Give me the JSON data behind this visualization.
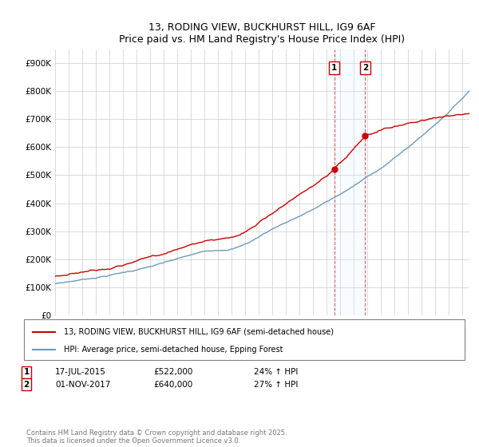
{
  "title1": "13, RODING VIEW, BUCKHURST HILL, IG9 6AF",
  "title2": "Price paid vs. HM Land Registry's House Price Index (HPI)",
  "legend_line1": "13, RODING VIEW, BUCKHURST HILL, IG9 6AF (semi-detached house)",
  "legend_line2": "HPI: Average price, semi-detached house, Epping Forest",
  "line1_color": "#cc0000",
  "line2_color": "#7099bb",
  "shade_color": "#ddeeff",
  "event1_label": "1",
  "event1_date": "17-JUL-2015",
  "event1_price": "£522,000",
  "event1_hpi": "24% ↑ HPI",
  "event1_x": 2015.54,
  "event1_y": 522000,
  "event2_label": "2",
  "event2_date": "01-NOV-2017",
  "event2_price": "£640,000",
  "event2_hpi": "27% ↑ HPI",
  "event2_x": 2017.83,
  "event2_y": 640000,
  "ylim": [
    0,
    950000
  ],
  "xlim_start": 1995,
  "xlim_end": 2025.5,
  "footer": "Contains HM Land Registry data © Crown copyright and database right 2025.\nThis data is licensed under the Open Government Licence v3.0.",
  "yticks": [
    0,
    100000,
    200000,
    300000,
    400000,
    500000,
    600000,
    700000,
    800000,
    900000
  ],
  "ytick_labels": [
    "£0",
    "£100K",
    "£200K",
    "£300K",
    "£400K",
    "£500K",
    "£600K",
    "£700K",
    "£800K",
    "£900K"
  ]
}
